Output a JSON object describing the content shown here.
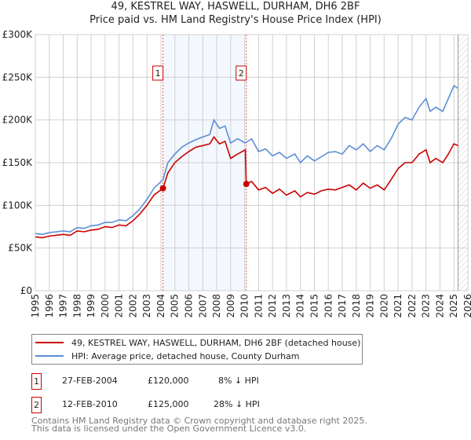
{
  "chart_data": {
    "type": "line",
    "title": "49, KESTREL WAY, HASWELL, DURHAM, DH6 2BF",
    "subtitle": "Price paid vs. HM Land Registry's House Price Index (HPI)",
    "ylim": [
      0,
      300000
    ],
    "xlim": [
      1995,
      2026
    ],
    "y_ticks": [
      {
        "v": 0,
        "label": "£0"
      },
      {
        "v": 50000,
        "label": "£50K"
      },
      {
        "v": 100000,
        "label": "£100K"
      },
      {
        "v": 150000,
        "label": "£150K"
      },
      {
        "v": 200000,
        "label": "£200K"
      },
      {
        "v": 250000,
        "label": "£250K"
      },
      {
        "v": 300000,
        "label": "£300K"
      }
    ],
    "x_ticks": [
      "1995",
      "1996",
      "1997",
      "1998",
      "1999",
      "2000",
      "2001",
      "2002",
      "2003",
      "2004",
      "2005",
      "2006",
      "2007",
      "2008",
      "2009",
      "2010",
      "2011",
      "2012",
      "2013",
      "2014",
      "2015",
      "2016",
      "2017",
      "2018",
      "2019",
      "2020",
      "2021",
      "2022",
      "2023",
      "2024",
      "2025",
      "2026"
    ],
    "grid": true,
    "shaded_range": [
      2004.15,
      2010.12
    ],
    "forecast_from": 2025.3,
    "series": [
      {
        "name": "49, KESTREL WAY, HASWELL, DURHAM, DH6 2BF (detached house)",
        "color": "#cc0000",
        "x": [
          1995,
          1995.5,
          1996,
          1996.5,
          1997,
          1997.5,
          1998,
          1998.5,
          1999,
          1999.5,
          2000,
          2000.5,
          2001,
          2001.5,
          2002,
          2002.5,
          2003,
          2003.5,
          2004.15,
          2004.5,
          2005,
          2005.5,
          2006,
          2006.5,
          2007,
          2007.5,
          2007.8,
          2008.2,
          2008.6,
          2009,
          2009.5,
          2010.05,
          2010.12,
          2010.5,
          2011,
          2011.5,
          2012,
          2012.5,
          2013,
          2013.6,
          2014,
          2014.5,
          2015,
          2015.5,
          2016,
          2016.5,
          2017,
          2017.5,
          2018,
          2018.5,
          2019,
          2019.5,
          2020,
          2020.5,
          2021,
          2021.5,
          2022,
          2022.5,
          2023,
          2023.3,
          2023.7,
          2024.2,
          2024.6,
          2025,
          2025.3
        ],
        "y": [
          63000,
          62000,
          64000,
          65000,
          66000,
          65000,
          70000,
          69000,
          71000,
          72000,
          75000,
          74000,
          77000,
          76000,
          82000,
          90000,
          100000,
          112000,
          120000,
          138000,
          150000,
          157000,
          163000,
          168000,
          170000,
          172000,
          180000,
          172000,
          175000,
          155000,
          160000,
          165000,
          125000,
          128000,
          118000,
          121000,
          114000,
          119000,
          112000,
          117000,
          110000,
          115000,
          113000,
          117000,
          119000,
          118000,
          121000,
          124000,
          118000,
          126000,
          120000,
          124000,
          118000,
          130000,
          143000,
          150000,
          150000,
          160000,
          165000,
          150000,
          155000,
          150000,
          160000,
          172000,
          170000
        ]
      },
      {
        "name": "HPI: Average price, detached house, County Durham",
        "color": "#5b8fd6",
        "x": [
          1995,
          1995.5,
          1996,
          1996.5,
          1997,
          1997.5,
          1998,
          1998.5,
          1999,
          1999.5,
          2000,
          2000.5,
          2001,
          2001.5,
          2002,
          2002.5,
          2003,
          2003.5,
          2004.15,
          2004.5,
          2005,
          2005.5,
          2006,
          2006.5,
          2007,
          2007.5,
          2007.8,
          2008.2,
          2008.6,
          2009,
          2009.5,
          2010.05,
          2010.5,
          2011,
          2011.5,
          2012,
          2012.5,
          2013,
          2013.6,
          2014,
          2014.5,
          2015,
          2015.5,
          2016,
          2016.5,
          2017,
          2017.5,
          2018,
          2018.5,
          2019,
          2019.5,
          2020,
          2020.5,
          2021,
          2021.5,
          2022,
          2022.5,
          2023,
          2023.3,
          2023.7,
          2024.2,
          2024.6,
          2025,
          2025.3
        ],
        "y": [
          67000,
          66000,
          68000,
          69000,
          70000,
          69000,
          74000,
          73000,
          76000,
          77000,
          80000,
          80000,
          83000,
          82000,
          88000,
          96000,
          107000,
          120000,
          130000,
          150000,
          160000,
          168000,
          173000,
          177000,
          180000,
          183000,
          200000,
          190000,
          193000,
          173000,
          178000,
          173000,
          178000,
          163000,
          166000,
          158000,
          162000,
          155000,
          160000,
          150000,
          158000,
          152000,
          157000,
          162000,
          163000,
          160000,
          170000,
          165000,
          172000,
          163000,
          170000,
          165000,
          178000,
          195000,
          203000,
          200000,
          215000,
          225000,
          210000,
          215000,
          210000,
          225000,
          240000,
          237000
        ]
      }
    ],
    "sales": [
      {
        "num": "1",
        "x": 2004.15,
        "y": 120000
      },
      {
        "num": "2",
        "x": 2010.12,
        "y": 125000
      }
    ]
  },
  "legend": {
    "red": "49, KESTREL WAY, HASWELL, DURHAM, DH6 2BF (detached house)",
    "blue": "HPI: Average price, detached house, County Durham"
  },
  "transactions": [
    {
      "num": "1",
      "date": "27-FEB-2004",
      "price": "£120,000",
      "hpi": "8% ↓ HPI"
    },
    {
      "num": "2",
      "date": "12-FEB-2010",
      "price": "£125,000",
      "hpi": "28% ↓ HPI"
    }
  ],
  "footer": {
    "line1": "Contains HM Land Registry data © Crown copyright and database right 2025.",
    "line2": "This data is licensed under the Open Government Licence v3.0."
  }
}
